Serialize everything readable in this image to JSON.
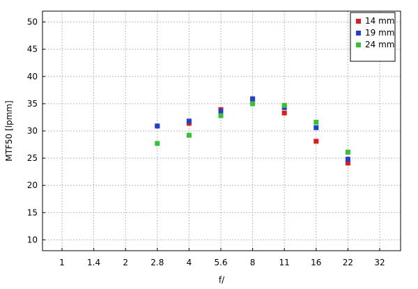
{
  "chart_data": {
    "type": "scatter",
    "xlabel": "f/",
    "ylabel": "MTF50 [lpmm]",
    "x_ticks": [
      "1",
      "1.4",
      "2",
      "2.8",
      "4",
      "5.6",
      "8",
      "11",
      "16",
      "22",
      "32"
    ],
    "y_ticks": [
      10,
      15,
      20,
      25,
      30,
      35,
      40,
      45,
      50
    ],
    "ylim": [
      8,
      52
    ],
    "grid": true,
    "legend_position": "top-right",
    "series": [
      {
        "name": "14 mm",
        "color": "#e31a1c",
        "x": [
          "2.8",
          "4",
          "5.6",
          "8",
          "11",
          "16",
          "22"
        ],
        "values": [
          30.9,
          31.4,
          33.9,
          35.8,
          33.3,
          28.1,
          24.1
        ]
      },
      {
        "name": "19 mm",
        "color": "#1f3fd6",
        "x": [
          "2.8",
          "4",
          "5.6",
          "8",
          "11",
          "16",
          "22"
        ],
        "values": [
          30.9,
          31.8,
          33.6,
          35.9,
          34.3,
          30.6,
          24.8
        ]
      },
      {
        "name": "24 mm",
        "color": "#33c333",
        "x": [
          "2.8",
          "4",
          "5.6",
          "8",
          "11",
          "16",
          "22"
        ],
        "values": [
          27.7,
          29.2,
          32.8,
          35.0,
          34.7,
          31.6,
          26.1
        ]
      }
    ]
  }
}
